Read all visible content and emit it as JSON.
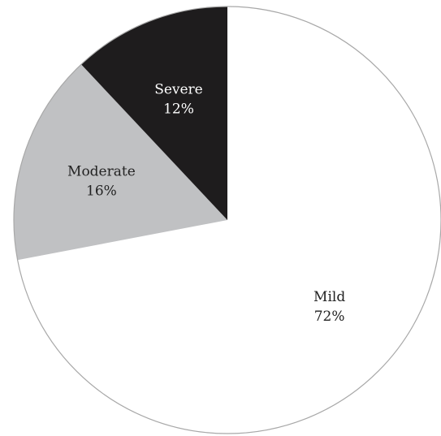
{
  "chart_data": {
    "type": "pie",
    "title": "",
    "start_angle_deg": 0,
    "direction": "clockwise",
    "slices": [
      {
        "label": "Mild",
        "value": 72,
        "value_label": "72%",
        "color": "#ffffff",
        "text_color": "#222222"
      },
      {
        "label": "Moderate",
        "value": 16,
        "value_label": "16%",
        "color": "#c0c1c3",
        "text_color": "#222222"
      },
      {
        "label": "Severe",
        "value": 12,
        "value_label": "12%",
        "color": "#1e1c1d",
        "text_color": "#ffffff"
      }
    ],
    "edge_color": "#a8a8a8"
  }
}
